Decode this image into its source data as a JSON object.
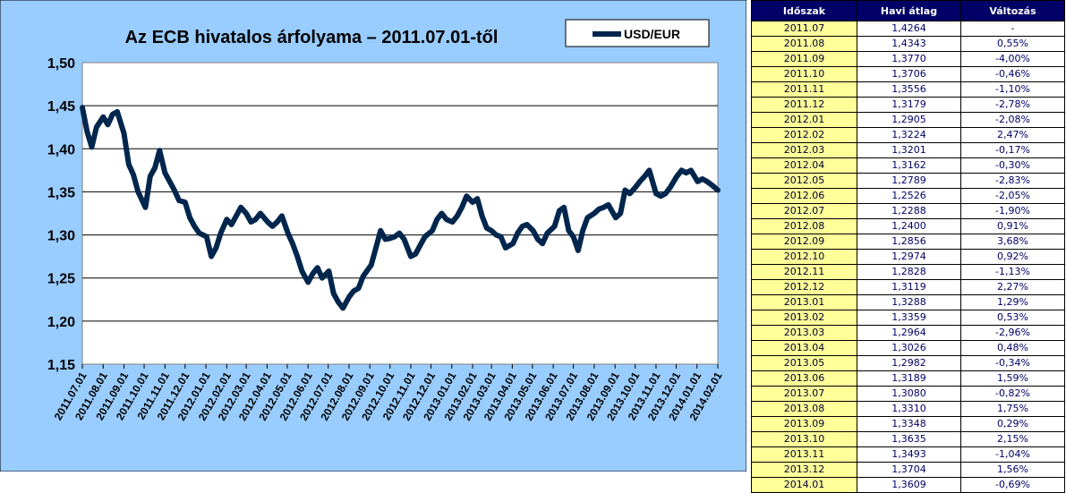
{
  "colors": {
    "panel": "#99ccff",
    "plot": "#ffffff",
    "line": "#00264d",
    "table_header": "#000066",
    "period_cell": "#ffff99"
  },
  "chart_data": {
    "type": "line",
    "title": "Az ECB hivatalos árfolyama – 2011.07.01-től",
    "legend": {
      "label": "USD/EUR",
      "placement": "top-right"
    },
    "ylim": [
      1.15,
      1.5
    ],
    "yticks": [
      "1,50",
      "1,45",
      "1,40",
      "1,35",
      "1,30",
      "1,25",
      "1,20",
      "1,15"
    ],
    "ytick_values": [
      1.5,
      1.45,
      1.4,
      1.35,
      1.3,
      1.25,
      1.2,
      1.15
    ],
    "xticks": [
      "2011.07.01",
      "2011.08.01",
      "2011.09.01",
      "2011.10.01",
      "2011.11.01",
      "2011.12.01",
      "2012.01.01",
      "2012.02.01",
      "2012.03.01",
      "2012.04.01",
      "2012.05.01",
      "2012.06.01",
      "2012.07.01",
      "2012.08.01",
      "2012.09.01",
      "2012.10.01",
      "2012.11.01",
      "2012.12.01",
      "2013.01.01",
      "2013.02.01",
      "2013.03.01",
      "2013.04.01",
      "2013.05.01",
      "2013.06.01",
      "2013.07.01",
      "2013.08.01",
      "2013.09.01",
      "2013.10.01",
      "2013.11.01",
      "2013.12.01",
      "2014.01.01",
      "2014.02.01"
    ],
    "grid": true,
    "series": [
      {
        "name": "USD/EUR",
        "x": [
          "2011.07.01",
          "2011.07.08",
          "2011.07.15",
          "2011.07.22",
          "2011.08.01",
          "2011.08.08",
          "2011.08.15",
          "2011.08.22",
          "2011.09.01",
          "2011.09.08",
          "2011.09.15",
          "2011.09.22",
          "2011.10.03",
          "2011.10.10",
          "2011.10.17",
          "2011.10.24",
          "2011.11.01",
          "2011.11.08",
          "2011.11.15",
          "2011.11.22",
          "2011.12.01",
          "2011.12.08",
          "2011.12.15",
          "2011.12.22",
          "2012.01.02",
          "2012.01.09",
          "2012.01.16",
          "2012.01.23",
          "2012.02.01",
          "2012.02.08",
          "2012.02.15",
          "2012.02.22",
          "2012.03.01",
          "2012.03.08",
          "2012.03.15",
          "2012.03.22",
          "2012.04.02",
          "2012.04.09",
          "2012.04.16",
          "2012.04.23",
          "2012.05.02",
          "2012.05.09",
          "2012.05.16",
          "2012.05.23",
          "2012.06.01",
          "2012.06.08",
          "2012.06.15",
          "2012.06.22",
          "2012.07.02",
          "2012.07.09",
          "2012.07.16",
          "2012.07.23",
          "2012.08.01",
          "2012.08.08",
          "2012.08.15",
          "2012.08.22",
          "2012.09.03",
          "2012.09.10",
          "2012.09.17",
          "2012.09.24",
          "2012.10.01",
          "2012.10.08",
          "2012.10.15",
          "2012.10.22",
          "2012.11.01",
          "2012.11.08",
          "2012.11.15",
          "2012.11.22",
          "2012.12.03",
          "2012.12.10",
          "2012.12.17",
          "2012.12.24",
          "2013.01.02",
          "2013.01.09",
          "2013.01.16",
          "2013.01.23",
          "2013.02.01",
          "2013.02.08",
          "2013.02.15",
          "2013.02.22",
          "2013.03.01",
          "2013.03.08",
          "2013.03.15",
          "2013.03.22",
          "2013.04.02",
          "2013.04.09",
          "2013.04.16",
          "2013.04.23",
          "2013.05.02",
          "2013.05.09",
          "2013.05.16",
          "2013.05.23",
          "2013.06.03",
          "2013.06.10",
          "2013.06.17",
          "2013.06.24",
          "2013.07.01",
          "2013.07.08",
          "2013.07.15",
          "2013.07.22",
          "2013.08.01",
          "2013.08.08",
          "2013.08.15",
          "2013.08.22",
          "2013.09.02",
          "2013.09.09",
          "2013.09.16",
          "2013.09.23",
          "2013.10.01",
          "2013.10.08",
          "2013.10.15",
          "2013.10.22",
          "2013.11.01",
          "2013.11.08",
          "2013.11.15",
          "2013.11.22",
          "2013.12.02",
          "2013.12.09",
          "2013.12.16",
          "2013.12.23",
          "2014.01.02",
          "2014.01.09",
          "2014.01.16",
          "2014.01.23",
          "2014.02.01"
        ],
        "values": [
          1.448,
          1.42,
          1.402,
          1.425,
          1.437,
          1.428,
          1.44,
          1.443,
          1.418,
          1.382,
          1.37,
          1.35,
          1.332,
          1.368,
          1.378,
          1.398,
          1.372,
          1.362,
          1.352,
          1.34,
          1.338,
          1.32,
          1.31,
          1.302,
          1.298,
          1.275,
          1.285,
          1.302,
          1.318,
          1.312,
          1.322,
          1.332,
          1.325,
          1.315,
          1.318,
          1.325,
          1.315,
          1.31,
          1.315,
          1.322,
          1.302,
          1.29,
          1.275,
          1.258,
          1.245,
          1.255,
          1.262,
          1.25,
          1.258,
          1.232,
          1.222,
          1.215,
          1.228,
          1.235,
          1.238,
          1.252,
          1.265,
          1.285,
          1.305,
          1.295,
          1.296,
          1.298,
          1.302,
          1.295,
          1.275,
          1.278,
          1.288,
          1.298,
          1.305,
          1.318,
          1.325,
          1.318,
          1.315,
          1.322,
          1.332,
          1.345,
          1.338,
          1.342,
          1.322,
          1.308,
          1.305,
          1.3,
          1.298,
          1.285,
          1.29,
          1.302,
          1.31,
          1.312,
          1.305,
          1.295,
          1.29,
          1.302,
          1.31,
          1.328,
          1.332,
          1.305,
          1.298,
          1.282,
          1.305,
          1.32,
          1.325,
          1.33,
          1.332,
          1.335,
          1.32,
          1.325,
          1.352,
          1.348,
          1.355,
          1.362,
          1.368,
          1.375,
          1.348,
          1.345,
          1.348,
          1.355,
          1.368,
          1.375,
          1.372,
          1.375,
          1.362,
          1.365,
          1.362,
          1.358,
          1.352
        ]
      }
    ]
  },
  "table": {
    "headers": [
      "Időszak",
      "Havi átlag",
      "Változás"
    ],
    "rows": [
      [
        "2011.07",
        "1,4264",
        "-"
      ],
      [
        "2011.08",
        "1,4343",
        "0,55%"
      ],
      [
        "2011.09",
        "1,3770",
        "-4,00%"
      ],
      [
        "2011.10",
        "1,3706",
        "-0,46%"
      ],
      [
        "2011.11",
        "1,3556",
        "-1,10%"
      ],
      [
        "2011.12",
        "1,3179",
        "-2,78%"
      ],
      [
        "2012.01",
        "1,2905",
        "-2,08%"
      ],
      [
        "2012.02",
        "1,3224",
        "2,47%"
      ],
      [
        "2012.03",
        "1,3201",
        "-0,17%"
      ],
      [
        "2012.04",
        "1,3162",
        "-0,30%"
      ],
      [
        "2012.05",
        "1,2789",
        "-2,83%"
      ],
      [
        "2012.06",
        "1,2526",
        "-2,05%"
      ],
      [
        "2012.07",
        "1,2288",
        "-1,90%"
      ],
      [
        "2012.08",
        "1,2400",
        "0,91%"
      ],
      [
        "2012.09",
        "1,2856",
        "3,68%"
      ],
      [
        "2012.10",
        "1,2974",
        "0,92%"
      ],
      [
        "2012.11",
        "1,2828",
        "-1,13%"
      ],
      [
        "2012.12",
        "1,3119",
        "2,27%"
      ],
      [
        "2013.01",
        "1,3288",
        "1,29%"
      ],
      [
        "2013.02",
        "1,3359",
        "0,53%"
      ],
      [
        "2013.03",
        "1,2964",
        "-2,96%"
      ],
      [
        "2013.04",
        "1,3026",
        "0,48%"
      ],
      [
        "2013.05",
        "1,2982",
        "-0,34%"
      ],
      [
        "2013.06",
        "1,3189",
        "1,59%"
      ],
      [
        "2013.07",
        "1,3080",
        "-0,82%"
      ],
      [
        "2013.08",
        "1,3310",
        "1,75%"
      ],
      [
        "2013.09",
        "1,3348",
        "0,29%"
      ],
      [
        "2013.10",
        "1,3635",
        "2,15%"
      ],
      [
        "2013.11",
        "1,3493",
        "-1,04%"
      ],
      [
        "2013.12",
        "1,3704",
        "1,56%"
      ],
      [
        "2014.01",
        "1,3609",
        "-0,69%"
      ]
    ]
  }
}
